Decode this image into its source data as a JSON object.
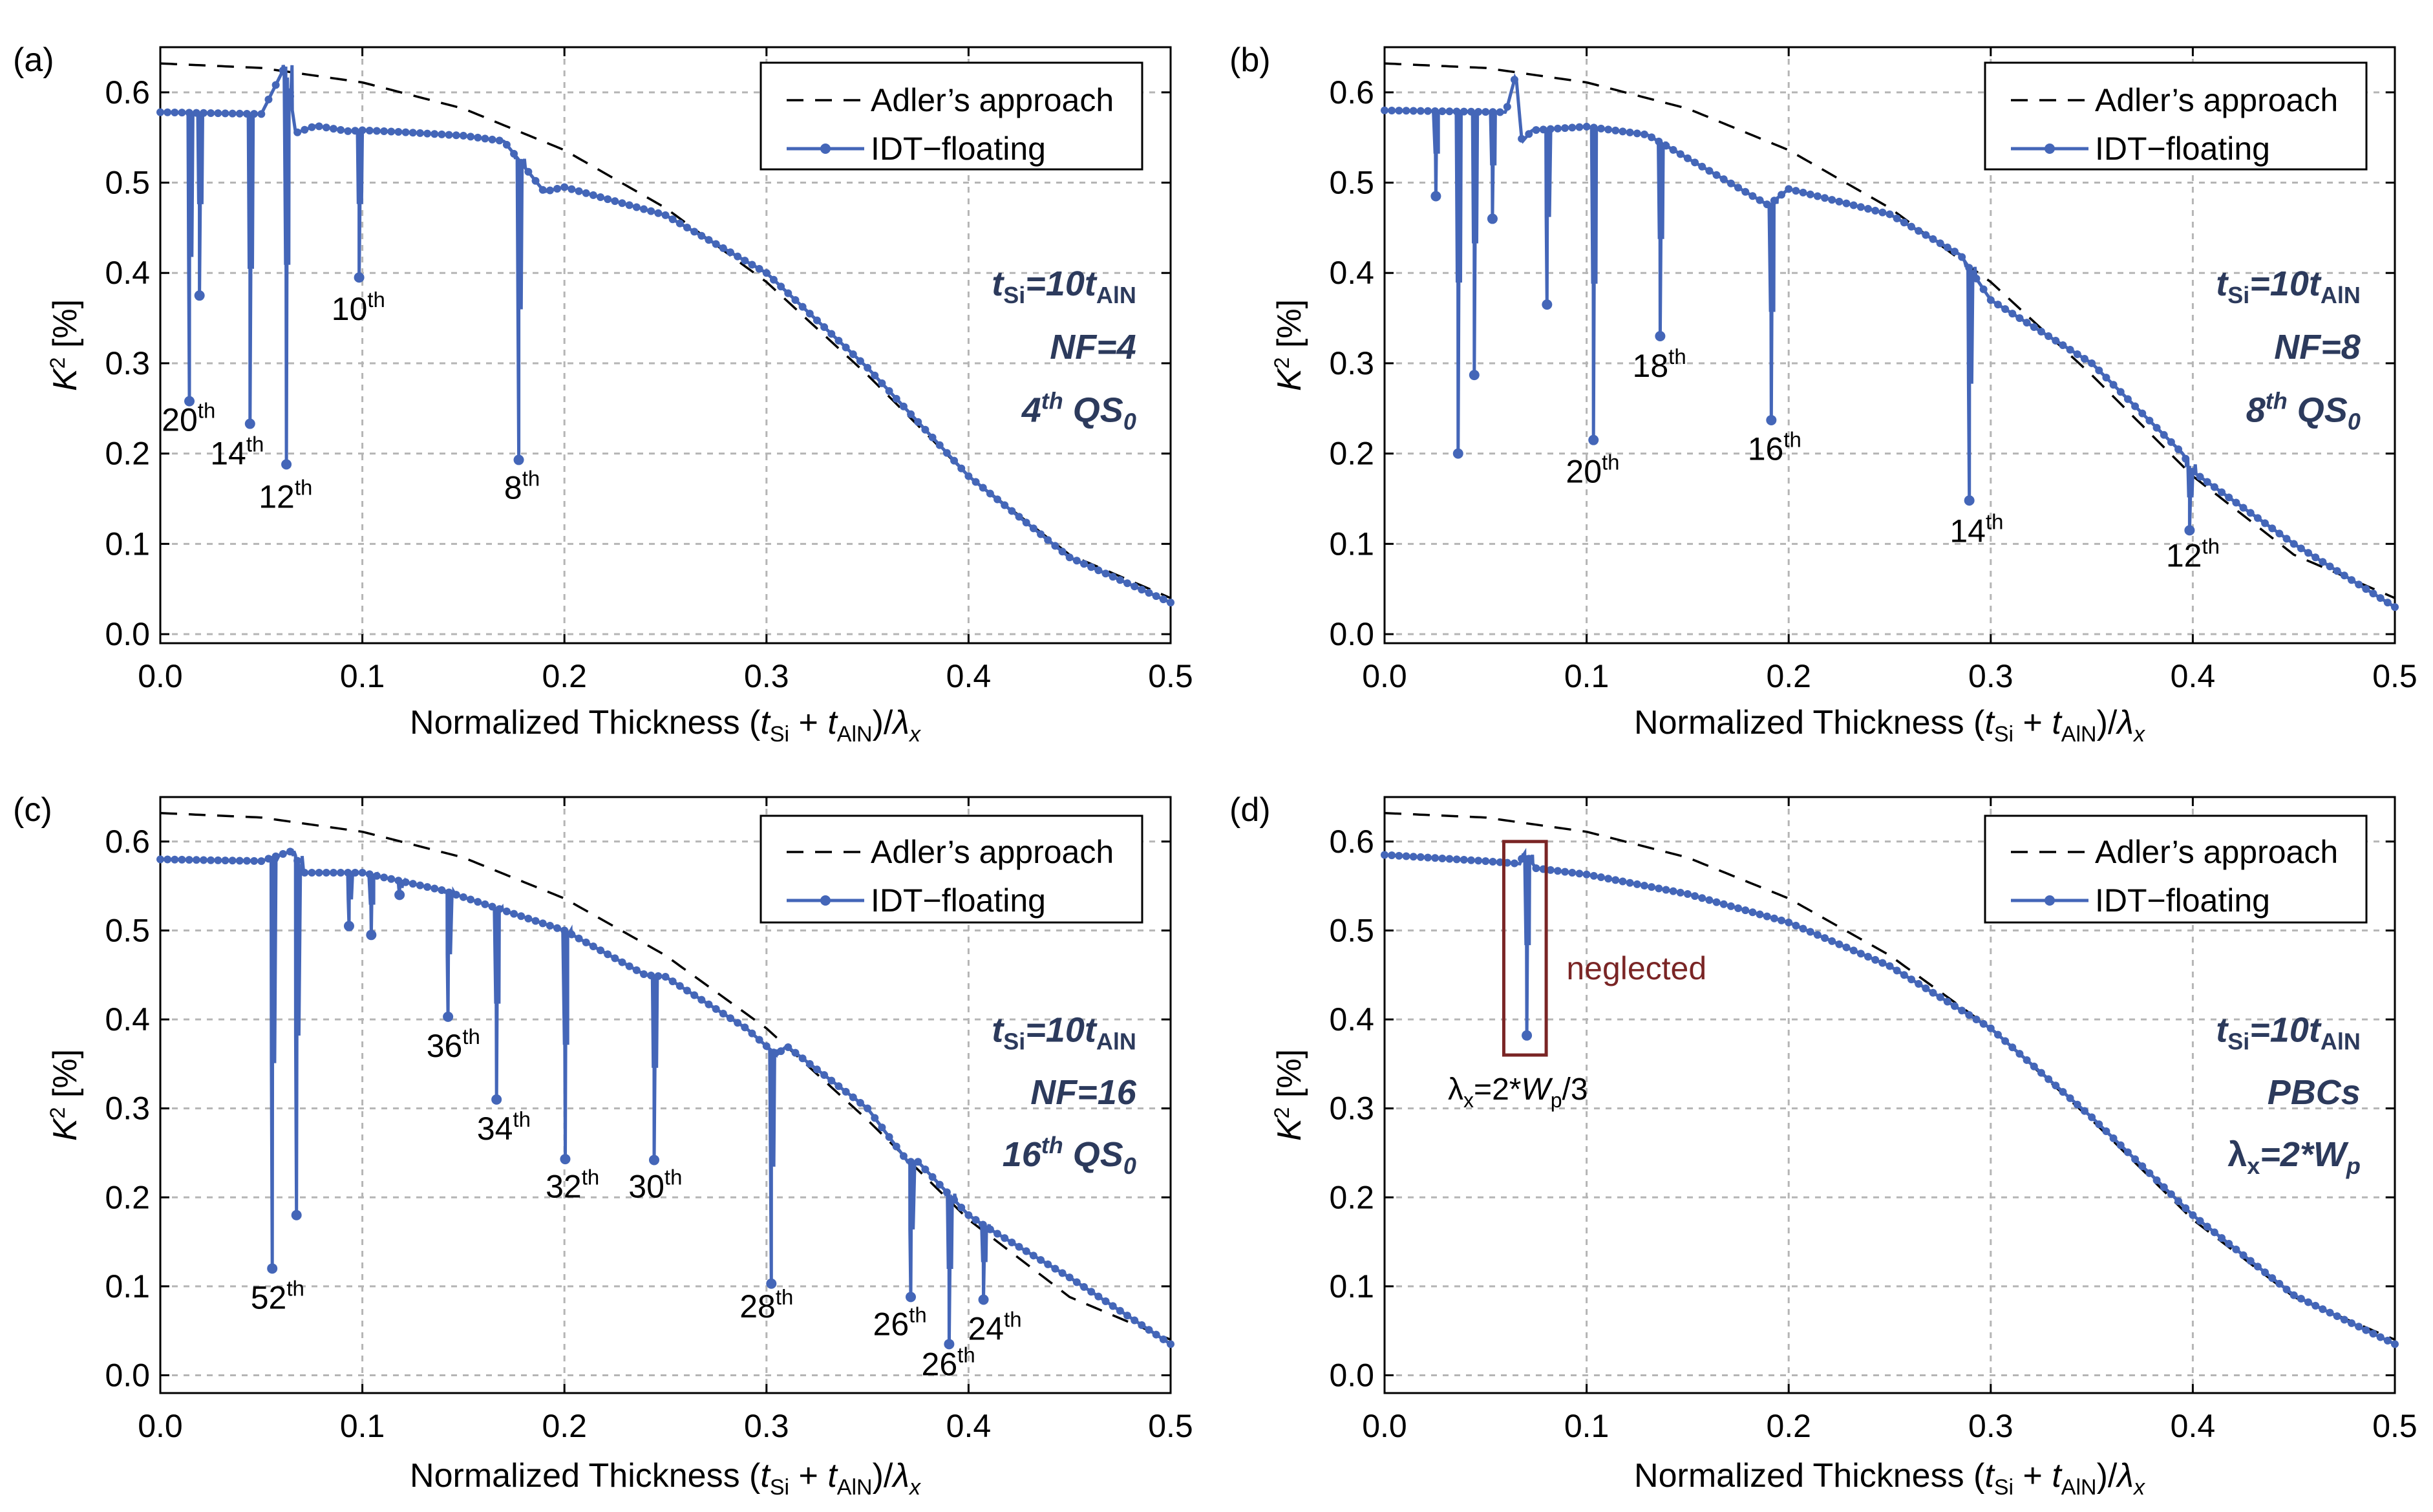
{
  "figure": {
    "series_names": {
      "adler": "Adler’s approach",
      "idt": "IDT−floating"
    },
    "colors": {
      "adler": "#000000",
      "idt": "#4466b8",
      "grid": "#b5b5b5",
      "annotation": "#2c3a5c",
      "neglected": "#7a2525"
    },
    "x_label": {
      "main": "Normalized Thickness (",
      "t": "t",
      "si": "Si",
      "plus": " + ",
      "t2": "t",
      "aln": "AlN",
      "close": ")/",
      "lambda": "λ",
      "sub": "x"
    },
    "y_label": {
      "k": "K",
      "sup": "2",
      "rest": " [%]"
    }
  },
  "chart_data": [
    {
      "panel": "(a)",
      "type": "line",
      "title": "",
      "xlabel": "Normalized Thickness (tSi + tAlN)/λx",
      "ylabel": "K2 [%]",
      "xlim": [
        0,
        0.5
      ],
      "ylim": [
        -0.01,
        0.65
      ],
      "xticks": [
        "0.0",
        "0.1",
        "0.2",
        "0.3",
        "0.4",
        "0.5"
      ],
      "yticks": [
        "0.0",
        "0.1",
        "0.2",
        "0.3",
        "0.4",
        "0.5",
        "0.6"
      ],
      "grid": true,
      "legend_position": "top-right",
      "adler": {
        "x": [
          0,
          0.05,
          0.1,
          0.15,
          0.2,
          0.25,
          0.3,
          0.35,
          0.4,
          0.45,
          0.5
        ],
        "y": [
          0.632,
          0.627,
          0.611,
          0.582,
          0.536,
          0.472,
          0.39,
          0.287,
          0.175,
          0.088,
          0.04
        ]
      },
      "base": {
        "x": [
          0,
          0.05,
          0.062,
          0.067,
          0.077,
          0.093,
          0.1,
          0.12,
          0.15,
          0.17,
          0.19,
          0.2,
          0.25,
          0.3,
          0.35,
          0.4,
          0.45,
          0.5
        ],
        "y": [
          0.578,
          0.576,
          0.63,
          0.555,
          0.563,
          0.557,
          0.558,
          0.556,
          0.552,
          0.546,
          0.49,
          0.495,
          0.464,
          0.4,
          0.295,
          0.175,
          0.085,
          0.035
        ]
      },
      "dips": [
        {
          "x": 0.014,
          "y": 0.258
        },
        {
          "x": 0.019,
          "y": 0.375
        },
        {
          "x": 0.044,
          "y": 0.233
        },
        {
          "x": 0.062,
          "y": 0.188
        },
        {
          "x": 0.098,
          "y": 0.395
        },
        {
          "x": 0.177,
          "y": 0.193
        }
      ],
      "labels": [
        {
          "text": "20",
          "sup": "th",
          "x": 0.014,
          "y": 0.225
        },
        {
          "text": "14",
          "sup": "th",
          "x": 0.038,
          "y": 0.188
        },
        {
          "text": "12",
          "sup": "th",
          "x": 0.062,
          "y": 0.14
        },
        {
          "text": "10",
          "sup": "th",
          "x": 0.098,
          "y": 0.348
        },
        {
          "text": "8",
          "sup": "th",
          "x": 0.179,
          "y": 0.15
        }
      ],
      "info": [
        {
          "text": "t",
          "sub": "Si",
          "mid": "=10t",
          "sub2": "AlN",
          "x": 0.483,
          "y": 0.375
        },
        {
          "text": "NF=4",
          "x": 0.483,
          "y": 0.305
        },
        {
          "text": "4",
          "sup": "th",
          "rest": " QS",
          "sub": "0",
          "x": 0.483,
          "y": 0.235
        }
      ]
    },
    {
      "panel": "(b)",
      "type": "line",
      "title": "",
      "xlabel": "Normalized Thickness (tSi + tAlN)/λx",
      "ylabel": "K2 [%]",
      "xlim": [
        0,
        0.5
      ],
      "ylim": [
        -0.01,
        0.65
      ],
      "xticks": [
        "0.0",
        "0.1",
        "0.2",
        "0.3",
        "0.4",
        "0.5"
      ],
      "yticks": [
        "0.0",
        "0.1",
        "0.2",
        "0.3",
        "0.4",
        "0.5",
        "0.6"
      ],
      "grid": true,
      "legend_position": "top-right",
      "adler": {
        "x": [
          0,
          0.05,
          0.1,
          0.15,
          0.2,
          0.25,
          0.3,
          0.35,
          0.4,
          0.45,
          0.5
        ],
        "y": [
          0.632,
          0.627,
          0.611,
          0.582,
          0.536,
          0.472,
          0.39,
          0.287,
          0.175,
          0.088,
          0.04
        ]
      },
      "base": {
        "x": [
          0,
          0.06,
          0.065,
          0.068,
          0.073,
          0.1,
          0.13,
          0.14,
          0.19,
          0.2,
          0.25,
          0.285,
          0.3,
          0.35,
          0.395,
          0.4,
          0.45,
          0.5
        ],
        "y": [
          0.58,
          0.578,
          0.62,
          0.545,
          0.558,
          0.562,
          0.553,
          0.54,
          0.475,
          0.493,
          0.465,
          0.42,
          0.37,
          0.3,
          0.2,
          0.18,
          0.1,
          0.03
        ]
      },
      "dips": [
        {
          "x": 0.025,
          "y": 0.485
        },
        {
          "x": 0.036,
          "y": 0.2
        },
        {
          "x": 0.044,
          "y": 0.287
        },
        {
          "x": 0.053,
          "y": 0.46
        },
        {
          "x": 0.08,
          "y": 0.365
        },
        {
          "x": 0.103,
          "y": 0.215
        },
        {
          "x": 0.136,
          "y": 0.33
        },
        {
          "x": 0.191,
          "y": 0.237
        },
        {
          "x": 0.289,
          "y": 0.148
        },
        {
          "x": 0.398,
          "y": 0.115
        }
      ],
      "labels": [
        {
          "text": "18",
          "sup": "th",
          "x": 0.136,
          "y": 0.285
        },
        {
          "text": "20",
          "sup": "th",
          "x": 0.103,
          "y": 0.168
        },
        {
          "text": "16",
          "sup": "th",
          "x": 0.193,
          "y": 0.193
        },
        {
          "text": "14",
          "sup": "th",
          "x": 0.293,
          "y": 0.102
        },
        {
          "text": "12",
          "sup": "th",
          "x": 0.4,
          "y": 0.075
        }
      ],
      "info": [
        {
          "text": "t",
          "sub": "Si",
          "mid": "=10t",
          "sub2": "AlN",
          "x": 0.483,
          "y": 0.375
        },
        {
          "text": "NF=8",
          "x": 0.483,
          "y": 0.305
        },
        {
          "text": "8",
          "sup": "th",
          "rest": " QS",
          "sub": "0",
          "x": 0.483,
          "y": 0.235
        }
      ]
    },
    {
      "panel": "(c)",
      "type": "line",
      "title": "",
      "xlabel": "Normalized Thickness (tSi + tAlN)/λx",
      "ylabel": "K2 [%]",
      "xlim": [
        0,
        0.5
      ],
      "ylim": [
        -0.02,
        0.65
      ],
      "xticks": [
        "0.0",
        "0.1",
        "0.2",
        "0.3",
        "0.4",
        "0.5"
      ],
      "yticks": [
        "0.0",
        "0.1",
        "0.2",
        "0.3",
        "0.4",
        "0.5",
        "0.6"
      ],
      "grid": true,
      "legend_position": "top-right",
      "adler": {
        "x": [
          0,
          0.05,
          0.1,
          0.15,
          0.2,
          0.25,
          0.3,
          0.35,
          0.4,
          0.45,
          0.5
        ],
        "y": [
          0.632,
          0.627,
          0.611,
          0.582,
          0.536,
          0.472,
          0.39,
          0.287,
          0.175,
          0.088,
          0.04
        ]
      },
      "base": {
        "x": [
          0,
          0.05,
          0.066,
          0.07,
          0.1,
          0.14,
          0.16,
          0.2,
          0.24,
          0.25,
          0.29,
          0.305,
          0.31,
          0.35,
          0.37,
          0.375,
          0.4,
          0.41,
          0.45,
          0.5
        ],
        "y": [
          0.58,
          0.578,
          0.59,
          0.565,
          0.565,
          0.545,
          0.53,
          0.5,
          0.45,
          0.448,
          0.39,
          0.36,
          0.37,
          0.3,
          0.24,
          0.24,
          0.18,
          0.165,
          0.11,
          0.035
        ]
      },
      "dips": [
        {
          "x": 0.055,
          "y": 0.12
        },
        {
          "x": 0.067,
          "y": 0.18
        },
        {
          "x": 0.093,
          "y": 0.505
        },
        {
          "x": 0.104,
          "y": 0.495
        },
        {
          "x": 0.118,
          "y": 0.54
        },
        {
          "x": 0.142,
          "y": 0.403
        },
        {
          "x": 0.166,
          "y": 0.31
        },
        {
          "x": 0.2,
          "y": 0.243
        },
        {
          "x": 0.244,
          "y": 0.242
        },
        {
          "x": 0.302,
          "y": 0.103
        },
        {
          "x": 0.371,
          "y": 0.088
        },
        {
          "x": 0.39,
          "y": 0.035
        },
        {
          "x": 0.407,
          "y": 0.085
        }
      ],
      "labels": [
        {
          "text": "52",
          "sup": "th",
          "x": 0.058,
          "y": 0.075
        },
        {
          "text": "36",
          "sup": "th",
          "x": 0.145,
          "y": 0.358
        },
        {
          "text": "34",
          "sup": "th",
          "x": 0.17,
          "y": 0.265
        },
        {
          "text": "32",
          "sup": "th",
          "x": 0.204,
          "y": 0.2
        },
        {
          "text": "30",
          "sup": "th",
          "x": 0.245,
          "y": 0.2
        },
        {
          "text": "28",
          "sup": "th",
          "x": 0.3,
          "y": 0.065
        },
        {
          "text": "26",
          "sup": "th",
          "x": 0.366,
          "y": 0.045
        },
        {
          "text": "26",
          "sup": "th",
          "x": 0.39,
          "y": 0.0
        },
        {
          "text": "24",
          "sup": "th",
          "x": 0.413,
          "y": 0.04
        }
      ],
      "info": [
        {
          "text": "t",
          "sub": "Si",
          "mid": "=10t",
          "sub2": "AlN",
          "x": 0.483,
          "y": 0.375
        },
        {
          "text": "NF=16",
          "x": 0.483,
          "y": 0.305
        },
        {
          "text": "16",
          "sup": "th",
          "rest": " QS",
          "sub": "0",
          "x": 0.483,
          "y": 0.235
        }
      ]
    },
    {
      "panel": "(d)",
      "type": "line",
      "title": "",
      "xlabel": "Normalized Thickness (tSi + tAlN)/λx",
      "ylabel": "K2 [%]",
      "xlim": [
        0,
        0.5
      ],
      "ylim": [
        -0.02,
        0.65
      ],
      "xticks": [
        "0.0",
        "0.1",
        "0.2",
        "0.3",
        "0.4",
        "0.5"
      ],
      "yticks": [
        "0.0",
        "0.1",
        "0.2",
        "0.3",
        "0.4",
        "0.5",
        "0.6"
      ],
      "grid": true,
      "legend_position": "top-right",
      "adler": {
        "x": [
          0,
          0.05,
          0.1,
          0.15,
          0.2,
          0.25,
          0.3,
          0.35,
          0.4,
          0.45,
          0.5
        ],
        "y": [
          0.632,
          0.627,
          0.611,
          0.582,
          0.536,
          0.472,
          0.39,
          0.287,
          0.175,
          0.088,
          0.04
        ]
      },
      "base": {
        "x": [
          0,
          0.05,
          0.067,
          0.069,
          0.075,
          0.1,
          0.15,
          0.2,
          0.25,
          0.3,
          0.35,
          0.4,
          0.45,
          0.5
        ],
        "y": [
          0.585,
          0.578,
          0.575,
          0.588,
          0.57,
          0.563,
          0.541,
          0.509,
          0.46,
          0.39,
          0.29,
          0.18,
          0.09,
          0.035
        ]
      },
      "dips": [
        {
          "x": 0.07,
          "y": 0.382
        }
      ],
      "labels": [],
      "neglected": {
        "text": "neglected",
        "lambda_label": {
          "l": "λ",
          "sub": "x",
          "mid": "=2*",
          "w": "W",
          "sub2": "p",
          "end": "/3"
        }
      },
      "info": [
        {
          "text": "t",
          "sub": "Si",
          "mid": "=10t",
          "sub2": "AlN",
          "x": 0.483,
          "y": 0.375
        },
        {
          "text": "PBCs",
          "x": 0.483,
          "y": 0.305
        },
        {
          "lambda": "λ",
          "sub": "x",
          "rest": "=2*W",
          "sub2": "p",
          "x": 0.483,
          "y": 0.235
        }
      ]
    }
  ]
}
